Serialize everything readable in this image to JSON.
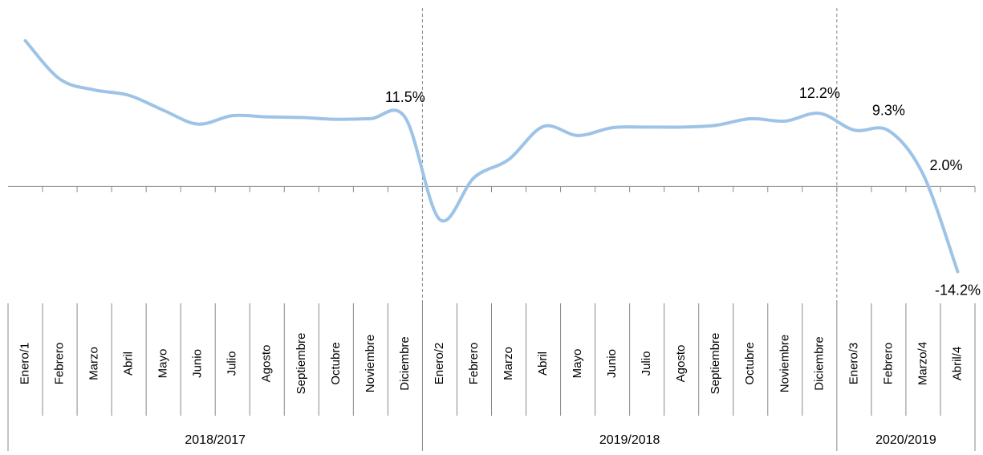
{
  "chart_data": {
    "type": "line",
    "category_groups": [
      {
        "name": "2018/2017",
        "categories": [
          "Enero/1",
          "Febrero",
          "Marzo",
          "Abril",
          "Mayo",
          "Junio",
          "Julio",
          "Agosto",
          "Septiembre",
          "Octubre",
          "Noviembre",
          "Diciembre"
        ]
      },
      {
        "name": "2019/2018",
        "categories": [
          "Enero/2",
          "Febrero",
          "Marzo",
          "Abril",
          "Mayo",
          "Junio",
          "Julio",
          "Agosto",
          "Septiembre",
          "Octubre",
          "Noviembre",
          "Diciembre"
        ]
      },
      {
        "name": "2020/2019",
        "categories": [
          "Enero/3",
          "Febrero",
          "Marzo/4",
          "Abril/4"
        ]
      }
    ],
    "series": [
      {
        "color": "#9dc3e6",
        "values": [
          24.3,
          17.9,
          16.1,
          15.2,
          12.7,
          10.4,
          11.8,
          11.6,
          11.5,
          11.2,
          11.3,
          11.5,
          -5.5,
          1.5,
          4.5,
          10.0,
          8.5,
          9.8,
          9.9,
          9.9,
          10.2,
          11.3,
          10.9,
          12.2,
          9.4,
          9.3,
          2.0,
          -14.2
        ],
        "value_labels": [
          null,
          null,
          null,
          null,
          null,
          null,
          null,
          null,
          null,
          null,
          null,
          "11.5%",
          null,
          null,
          null,
          null,
          null,
          null,
          null,
          null,
          null,
          null,
          null,
          "12.2%",
          null,
          "9.3%",
          "2.0%",
          "-14.2%"
        ]
      }
    ],
    "ylim": [
      -16,
      26
    ]
  }
}
